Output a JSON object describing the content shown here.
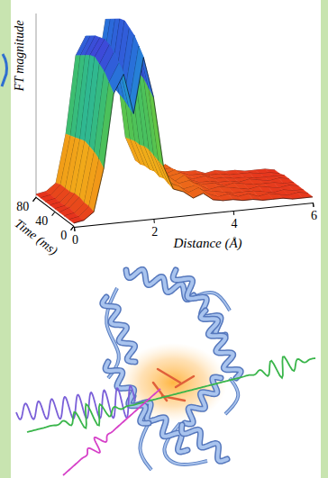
{
  "chart_data": {
    "type": "surface",
    "x_label": "Distance (Å)",
    "y_label": "Time (ms)",
    "z_label": "FT magnitude",
    "color": "rainbow",
    "x": [
      0,
      0.25,
      0.5,
      0.75,
      1,
      1.25,
      1.5,
      1.75,
      2,
      2.25,
      2.5,
      2.75,
      3,
      3.25,
      3.5,
      3.75,
      4,
      4.25,
      4.5,
      4.75,
      5,
      5.25,
      5.5,
      5.75,
      6
    ],
    "y": [
      0,
      10,
      20,
      30,
      40,
      50,
      60,
      70,
      80
    ],
    "z": [
      [
        0.02,
        0.03,
        0.07,
        0.3,
        0.7,
        0.8,
        0.58,
        0.88,
        0.66,
        0.28,
        0.15,
        0.13,
        0.09,
        0.11,
        0.07,
        0.06,
        0.06,
        0.05,
        0.05,
        0.04,
        0.04,
        0.04,
        0.03,
        0.03,
        0.03
      ],
      [
        0.02,
        0.03,
        0.08,
        0.33,
        0.74,
        0.84,
        0.6,
        0.92,
        0.69,
        0.29,
        0.16,
        0.14,
        0.1,
        0.12,
        0.08,
        0.06,
        0.07,
        0.05,
        0.06,
        0.04,
        0.05,
        0.04,
        0.03,
        0.04,
        0.03
      ],
      [
        0.02,
        0.03,
        0.08,
        0.35,
        0.78,
        0.88,
        0.62,
        0.96,
        0.72,
        0.3,
        0.17,
        0.13,
        0.1,
        0.11,
        0.08,
        0.07,
        0.06,
        0.05,
        0.05,
        0.05,
        0.04,
        0.03,
        0.04,
        0.03,
        0.03
      ],
      [
        0.02,
        0.04,
        0.09,
        0.36,
        0.8,
        0.9,
        0.63,
        0.98,
        0.73,
        0.31,
        0.16,
        0.15,
        0.11,
        0.12,
        0.09,
        0.06,
        0.07,
        0.06,
        0.05,
        0.04,
        0.05,
        0.04,
        0.03,
        0.04,
        0.03
      ],
      [
        0.02,
        0.03,
        0.09,
        0.37,
        0.82,
        0.91,
        0.64,
        1.0,
        0.74,
        0.31,
        0.17,
        0.14,
        0.1,
        0.13,
        0.08,
        0.07,
        0.07,
        0.05,
        0.06,
        0.05,
        0.04,
        0.04,
        0.04,
        0.03,
        0.03
      ],
      [
        0.02,
        0.03,
        0.08,
        0.36,
        0.81,
        0.9,
        0.63,
        0.99,
        0.73,
        0.3,
        0.16,
        0.14,
        0.11,
        0.12,
        0.08,
        0.06,
        0.06,
        0.05,
        0.05,
        0.04,
        0.05,
        0.04,
        0.03,
        0.04,
        0.03
      ],
      [
        0.02,
        0.03,
        0.08,
        0.35,
        0.79,
        0.89,
        0.62,
        0.97,
        0.72,
        0.3,
        0.16,
        0.13,
        0.1,
        0.12,
        0.07,
        0.06,
        0.07,
        0.05,
        0.05,
        0.04,
        0.04,
        0.03,
        0.03,
        0.03,
        0.03
      ],
      [
        0.02,
        0.03,
        0.08,
        0.34,
        0.77,
        0.87,
        0.61,
        0.95,
        0.71,
        0.29,
        0.15,
        0.14,
        0.1,
        0.11,
        0.08,
        0.06,
        0.06,
        0.05,
        0.05,
        0.04,
        0.04,
        0.04,
        0.03,
        0.03,
        0.02
      ],
      [
        0.02,
        0.03,
        0.07,
        0.33,
        0.75,
        0.85,
        0.6,
        0.93,
        0.7,
        0.28,
        0.15,
        0.13,
        0.09,
        0.11,
        0.07,
        0.06,
        0.06,
        0.04,
        0.05,
        0.04,
        0.04,
        0.03,
        0.03,
        0.03,
        0.02
      ]
    ],
    "xlim": [
      0,
      6
    ],
    "xticks": [
      0,
      2,
      4,
      6
    ],
    "ylim": [
      0,
      80
    ],
    "yticks": [
      0,
      40,
      80
    ],
    "zlim": [
      0,
      1
    ]
  }
}
